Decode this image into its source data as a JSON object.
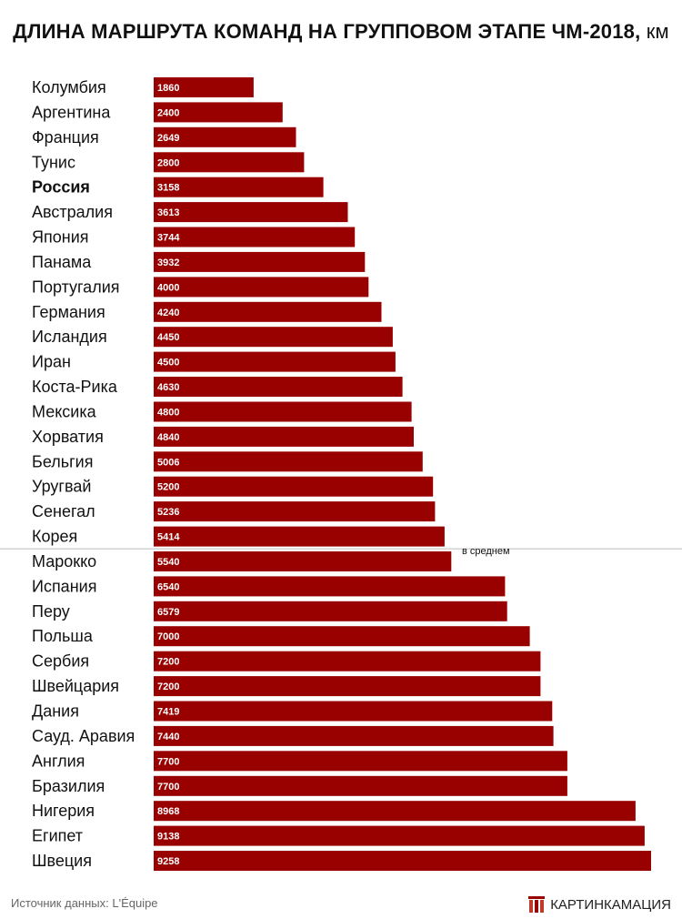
{
  "header": {
    "title": "ДЛИНА МАРШРУТА КОМАНД НА ГРУППОВОМ ЭТАПЕ ЧМ-2018,",
    "unit": "км"
  },
  "chart_data": {
    "type": "bar",
    "orientation": "horizontal",
    "title": "ДЛИНА МАРШРУТА КОМАНД НА ГРУППОВОМ ЭТАПЕ ЧМ-2018, км",
    "categories": [
      "Колумбия",
      "Аргентина",
      "Франция",
      "Тунис",
      "Россия",
      "Австралия",
      "Япония",
      "Панама",
      "Португалия",
      "Германия",
      "Исландия",
      "Иран",
      "Коста-Рика",
      "Мексика",
      "Хорватия",
      "Бельгия",
      "Уругвай",
      "Сенегал",
      "Корея",
      "Марокко",
      "Испания",
      "Перу",
      "Польша",
      "Сербия",
      "Швейцария",
      "Дания",
      "Сауд. Аравия",
      "Англия",
      "Бразилия",
      "Нигерия",
      "Египет",
      "Швеция"
    ],
    "values": [
      1860,
      2400,
      2649,
      2800,
      3158,
      3613,
      3744,
      3932,
      4000,
      4240,
      4450,
      4500,
      4630,
      4800,
      4840,
      5006,
      5200,
      5236,
      5414,
      5540,
      6540,
      6579,
      7000,
      7200,
      7200,
      7419,
      7440,
      7700,
      7700,
      8968,
      9138,
      9258
    ],
    "highlight": "Россия",
    "bar_color": "#990000",
    "average_line_label": "в среднем",
    "average_line_after": "Корея",
    "xlim": [
      0,
      9258
    ]
  },
  "footer": {
    "source": "Источник данных: L'Équipe",
    "brand": "КАРТИНКАМАЦИЯ"
  }
}
